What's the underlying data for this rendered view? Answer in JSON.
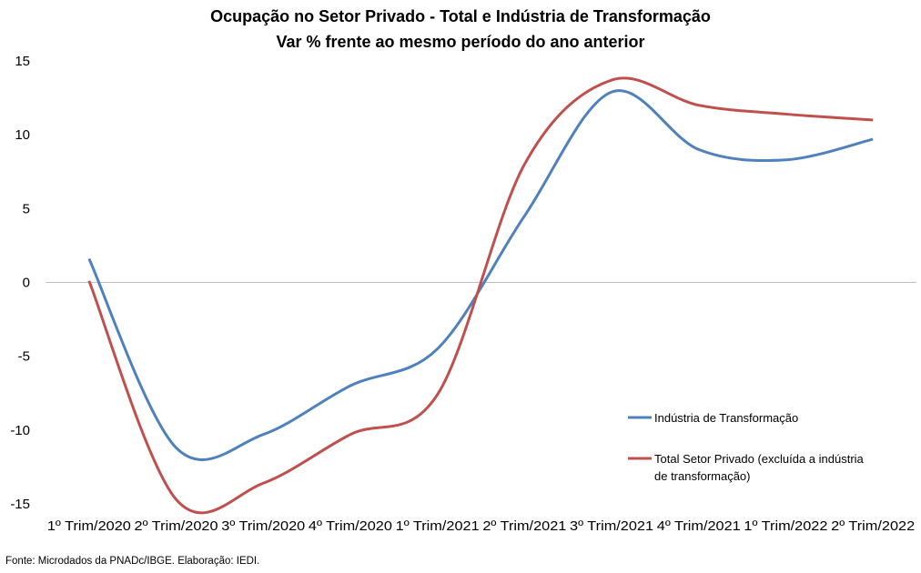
{
  "chart_data": {
    "type": "line",
    "title": "Ocupação no Setor Privado - Total e Indústria de Transformação",
    "subtitle": "Var % frente ao mesmo período do ano anterior",
    "xlabel": "",
    "ylabel": "",
    "categories": [
      "1º Trim/2020",
      "2º Trim/2020",
      "3º Trim/2020",
      "4º Trim/2020",
      "1º Trim/2021",
      "2º Trim/2021",
      "3º Trim/2021",
      "4º Trim/2021",
      "1º Trim/2022",
      "2º Trim/2022"
    ],
    "ylim": [
      -15,
      15
    ],
    "yticks": [
      15,
      10,
      5,
      0,
      -5,
      -10,
      -15
    ],
    "grid": false,
    "legend_position": "right",
    "series": [
      {
        "name": "Indústria de Transformação",
        "color": "#4F81BD",
        "values": [
          1.6,
          -11.2,
          -10.3,
          -7.0,
          -4.5,
          4.5,
          12.9,
          9.0,
          8.3,
          9.7
        ]
      },
      {
        "name": "Total Setor Privado (excluída a indústria de transformação)",
        "color": "#C0504D",
        "values": [
          0.1,
          -14.7,
          -13.6,
          -10.3,
          -7.6,
          8.0,
          13.7,
          12.0,
          11.4,
          11.0
        ]
      }
    ]
  },
  "legend": {
    "series1": "Indústria de Transformação",
    "series2_line1": "Total Setor Privado (excluída a indústria",
    "series2_line2": "de transformação)"
  },
  "source": "Fonte: Microdados da PNADc/IBGE. Elaboração: IEDI."
}
